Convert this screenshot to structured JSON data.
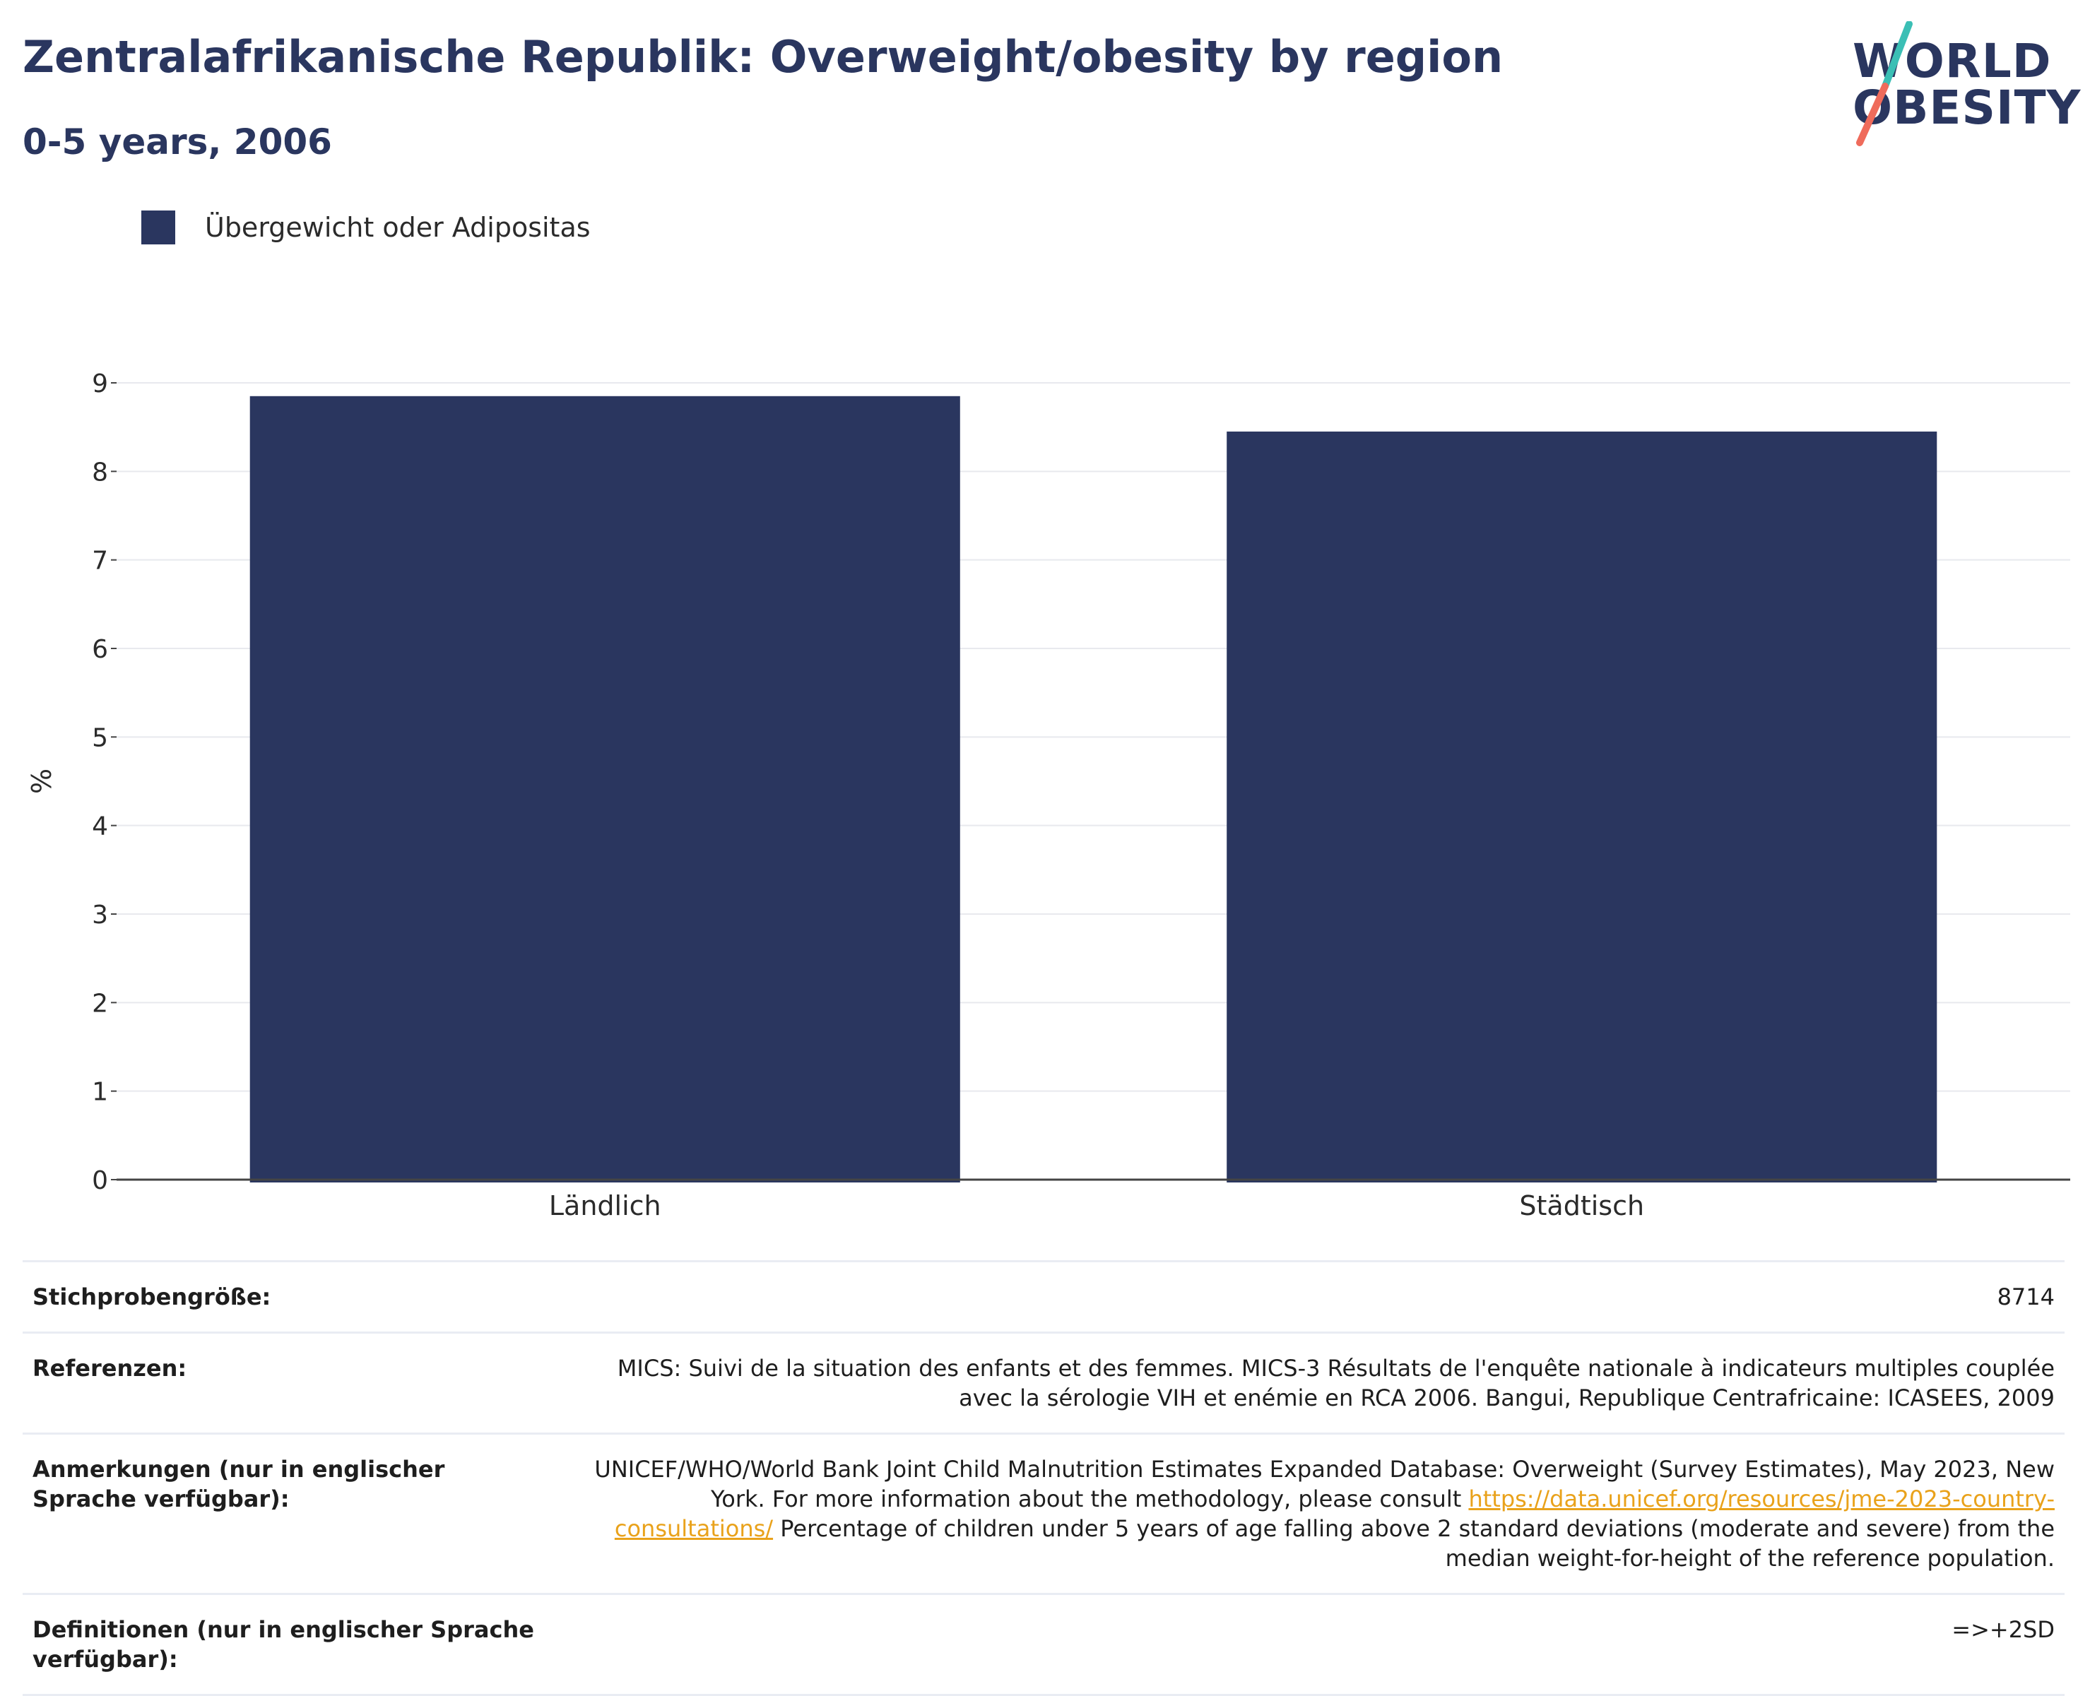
{
  "header": {
    "title": "Zentralafrikanische Republik: Overweight/obesity by region",
    "subtitle": "0-5 years, 2006"
  },
  "logo": {
    "line1": "WORLD",
    "line2": "OBESITY",
    "colors": {
      "navy": "#2a365f",
      "teal": "#3bbfb5",
      "coral": "#ef6b5b"
    }
  },
  "legend": {
    "label": "Übergewicht oder Adipositas",
    "color": "#2a365f"
  },
  "chart_data": {
    "type": "bar",
    "categories": [
      "Ländlich",
      "Städtisch"
    ],
    "series": [
      {
        "name": "Übergewicht oder Adipositas",
        "values": [
          8.85,
          8.45
        ],
        "color": "#2a365f"
      }
    ],
    "title": "Zentralafrikanische Republik: Overweight/obesity by region",
    "subtitle": "0-5 years, 2006",
    "xlabel": "",
    "ylabel": "%",
    "ylim": [
      0,
      9
    ],
    "yticks": [
      0,
      1,
      2,
      3,
      4,
      5,
      6,
      7,
      8,
      9
    ],
    "grid": true,
    "legend_position": "top-left"
  },
  "info": {
    "sample_label": "Stichprobengröße:",
    "sample_value": "8714",
    "references_label": "Referenzen:",
    "references_value": "MICS: Suivi de la situation des enfants et des femmes. MICS-3 Résultats de l'enquête nationale à indicateurs multiples couplée avec la sérologie VIH et enémie en RCA 2006. Bangui, Republique Centrafricaine: ICASEES, 2009",
    "notes_label": "Anmerkungen (nur in englischer Sprache verfügbar):",
    "notes_text_1": "UNICEF/WHO/World Bank Joint Child Malnutrition Estimates Expanded Database: Overweight (Survey Estimates), May 2023, New York. For more information about the methodology, please consult ",
    "notes_link": "https://data.unicef.org/resources/jme-2023-country-consultations/",
    "notes_text_2": " Percentage of children under 5 years of age falling above 2 standard deviations (moderate and severe) from the median weight-for-height of the reference population.",
    "definitions_label": "Definitionen (nur in englischer Sprache verfügbar):",
    "definitions_value": "=>+2SD"
  }
}
